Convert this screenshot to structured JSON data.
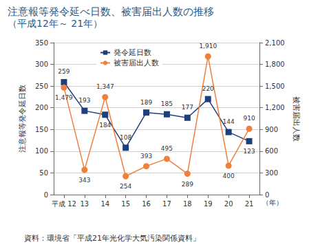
{
  "chart_data": {
    "type": "line",
    "title": "注意報等発令延べ日数、被害届出人数の推移",
    "subtitle": "（平成12年～ 21年）",
    "source": "資料：環境省「平成21年光化学大気汚染関係資料」",
    "x_label": "（年）",
    "y_label": "注意報等発令延日数",
    "y2_label": "被害届出人数",
    "categories": [
      "平成 12",
      "13",
      "14",
      "15",
      "16",
      "17",
      "18",
      "19",
      "20",
      "21"
    ],
    "series": [
      {
        "name": "発令延日数",
        "color": "#1f3f7a",
        "marker": "square",
        "values": [
          259,
          193,
          184,
          108,
          189,
          185,
          177,
          220,
          144,
          123
        ]
      },
      {
        "name": "被害届出人数",
        "color": "#f07f3c",
        "marker": "circle",
        "axis": "y2",
        "values": [
          1479,
          343,
          1347,
          254,
          393,
          495,
          289,
          1910,
          400,
          910
        ],
        "value_labels": [
          "1,479",
          "343",
          "1,347",
          "254",
          "393",
          "495",
          "289",
          "1,910",
          "400",
          "910"
        ]
      }
    ],
    "ylim": [
      0,
      350
    ],
    "yticks": [
      0,
      50,
      100,
      150,
      200,
      250,
      300,
      350
    ],
    "y2lim": [
      0,
      2100
    ],
    "y2ticks": [
      0,
      300,
      600,
      900,
      {
        "value": 1200,
        "label": "1,200"
      },
      {
        "value": 1500,
        "label": "1,500"
      },
      {
        "value": 1800,
        "label": "1,800"
      },
      {
        "value": 2100,
        "label": "2,100"
      }
    ],
    "grid": true,
    "legend": "top-left",
    "data_labels": true
  }
}
